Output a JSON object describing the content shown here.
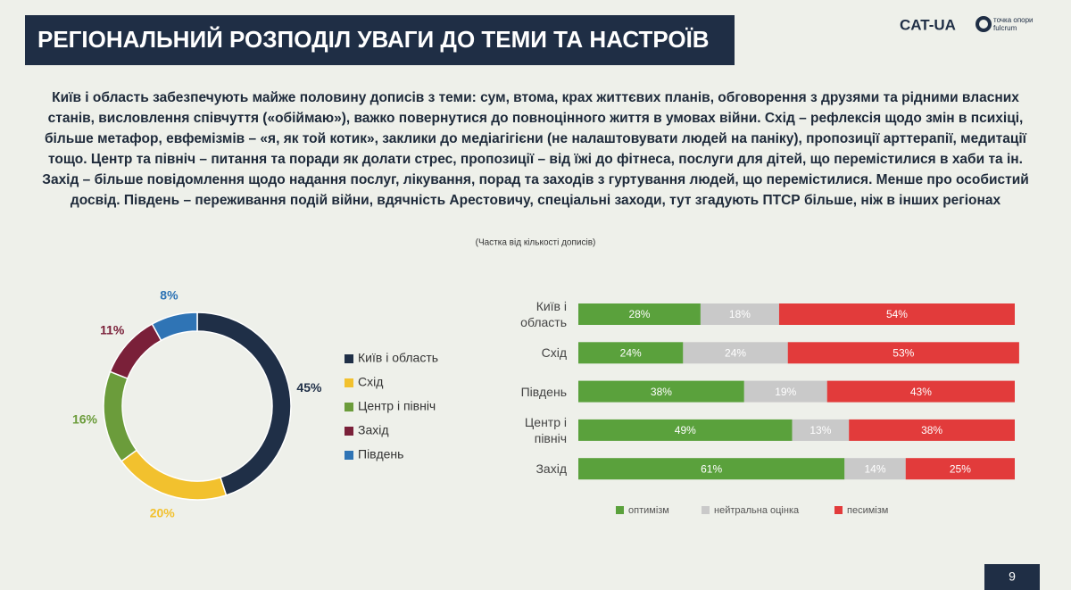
{
  "header": {
    "title": "РЕГІОНАЛЬНИЙ РОЗПОДІЛ УВАГИ ДО ТЕМИ ТА НАСТРОЇВ",
    "logos": [
      "CAT-UA",
      "точка опори",
      "fulcrum"
    ]
  },
  "text": "Київ і область забезпечують майже половину дописів з теми: сум, втома, крах життєвих планів, обговорення з друзями та рідними власних станів, висловлення співчуття («обіймаю»), важко повернутися до повноцінного життя в умовах війни. Схід – рефлексія щодо змін в психіці, більше метафор, евфемізмів – «я, як той котик», заклики до медіагігієни (не налаштовувати людей на паніку), пропозиції арттерапії, медитації тощо. Центр та північ – питання та поради як долати стрес, пропозиції – від їжі до фітнеса, послуги для дітей, що перемістилися в хаби та ін. Захід – більше повідомлення щодо надання послуг, лікування, порад та заходів з гуртування людей, що перемістилися. Менше про особистий досвід. Південь – переживання подій війни, вдячність Арестовичу, спеціальні заходи, тут згадують ПТСР більше, ніж в інших регіонах",
  "note": "(Частка від кількості дописів)",
  "page_number": "9",
  "chart_data": [
    {
      "type": "pie",
      "categories": [
        "Київ і область",
        "Схід",
        "Центр і північ",
        "Захід",
        "Південь"
      ],
      "values": [
        45,
        20,
        16,
        11,
        8
      ],
      "value_labels": [
        "45%",
        "20%",
        "16%",
        "11%",
        "8%"
      ],
      "colors": [
        "#1f2f47",
        "#f2c12e",
        "#6b9c3b",
        "#7a2039",
        "#2f74b5"
      ]
    },
    {
      "type": "bar",
      "orientation": "horizontal",
      "stacked": true,
      "categories": [
        "Київ і область",
        "Схід",
        "Південь",
        "Центр і північ",
        "Захід"
      ],
      "series": [
        {
          "name": "оптимізм",
          "color": "#5aa13c",
          "values": [
            28,
            24,
            38,
            49,
            61
          ],
          "value_labels": [
            "28%",
            "24%",
            "38%",
            "49%",
            "61%"
          ]
        },
        {
          "name": "нейтральна оцінка",
          "color": "#c9c9c9",
          "values": [
            18,
            24,
            19,
            13,
            14
          ],
          "value_labels": [
            "18%",
            "24%",
            "19%",
            "13%",
            "14%"
          ]
        },
        {
          "name": "песимізм",
          "color": "#e23b3b",
          "values": [
            54,
            53,
            43,
            38,
            25
          ],
          "value_labels": [
            "54%",
            "53%",
            "43%",
            "38%",
            "25%"
          ]
        }
      ]
    }
  ]
}
